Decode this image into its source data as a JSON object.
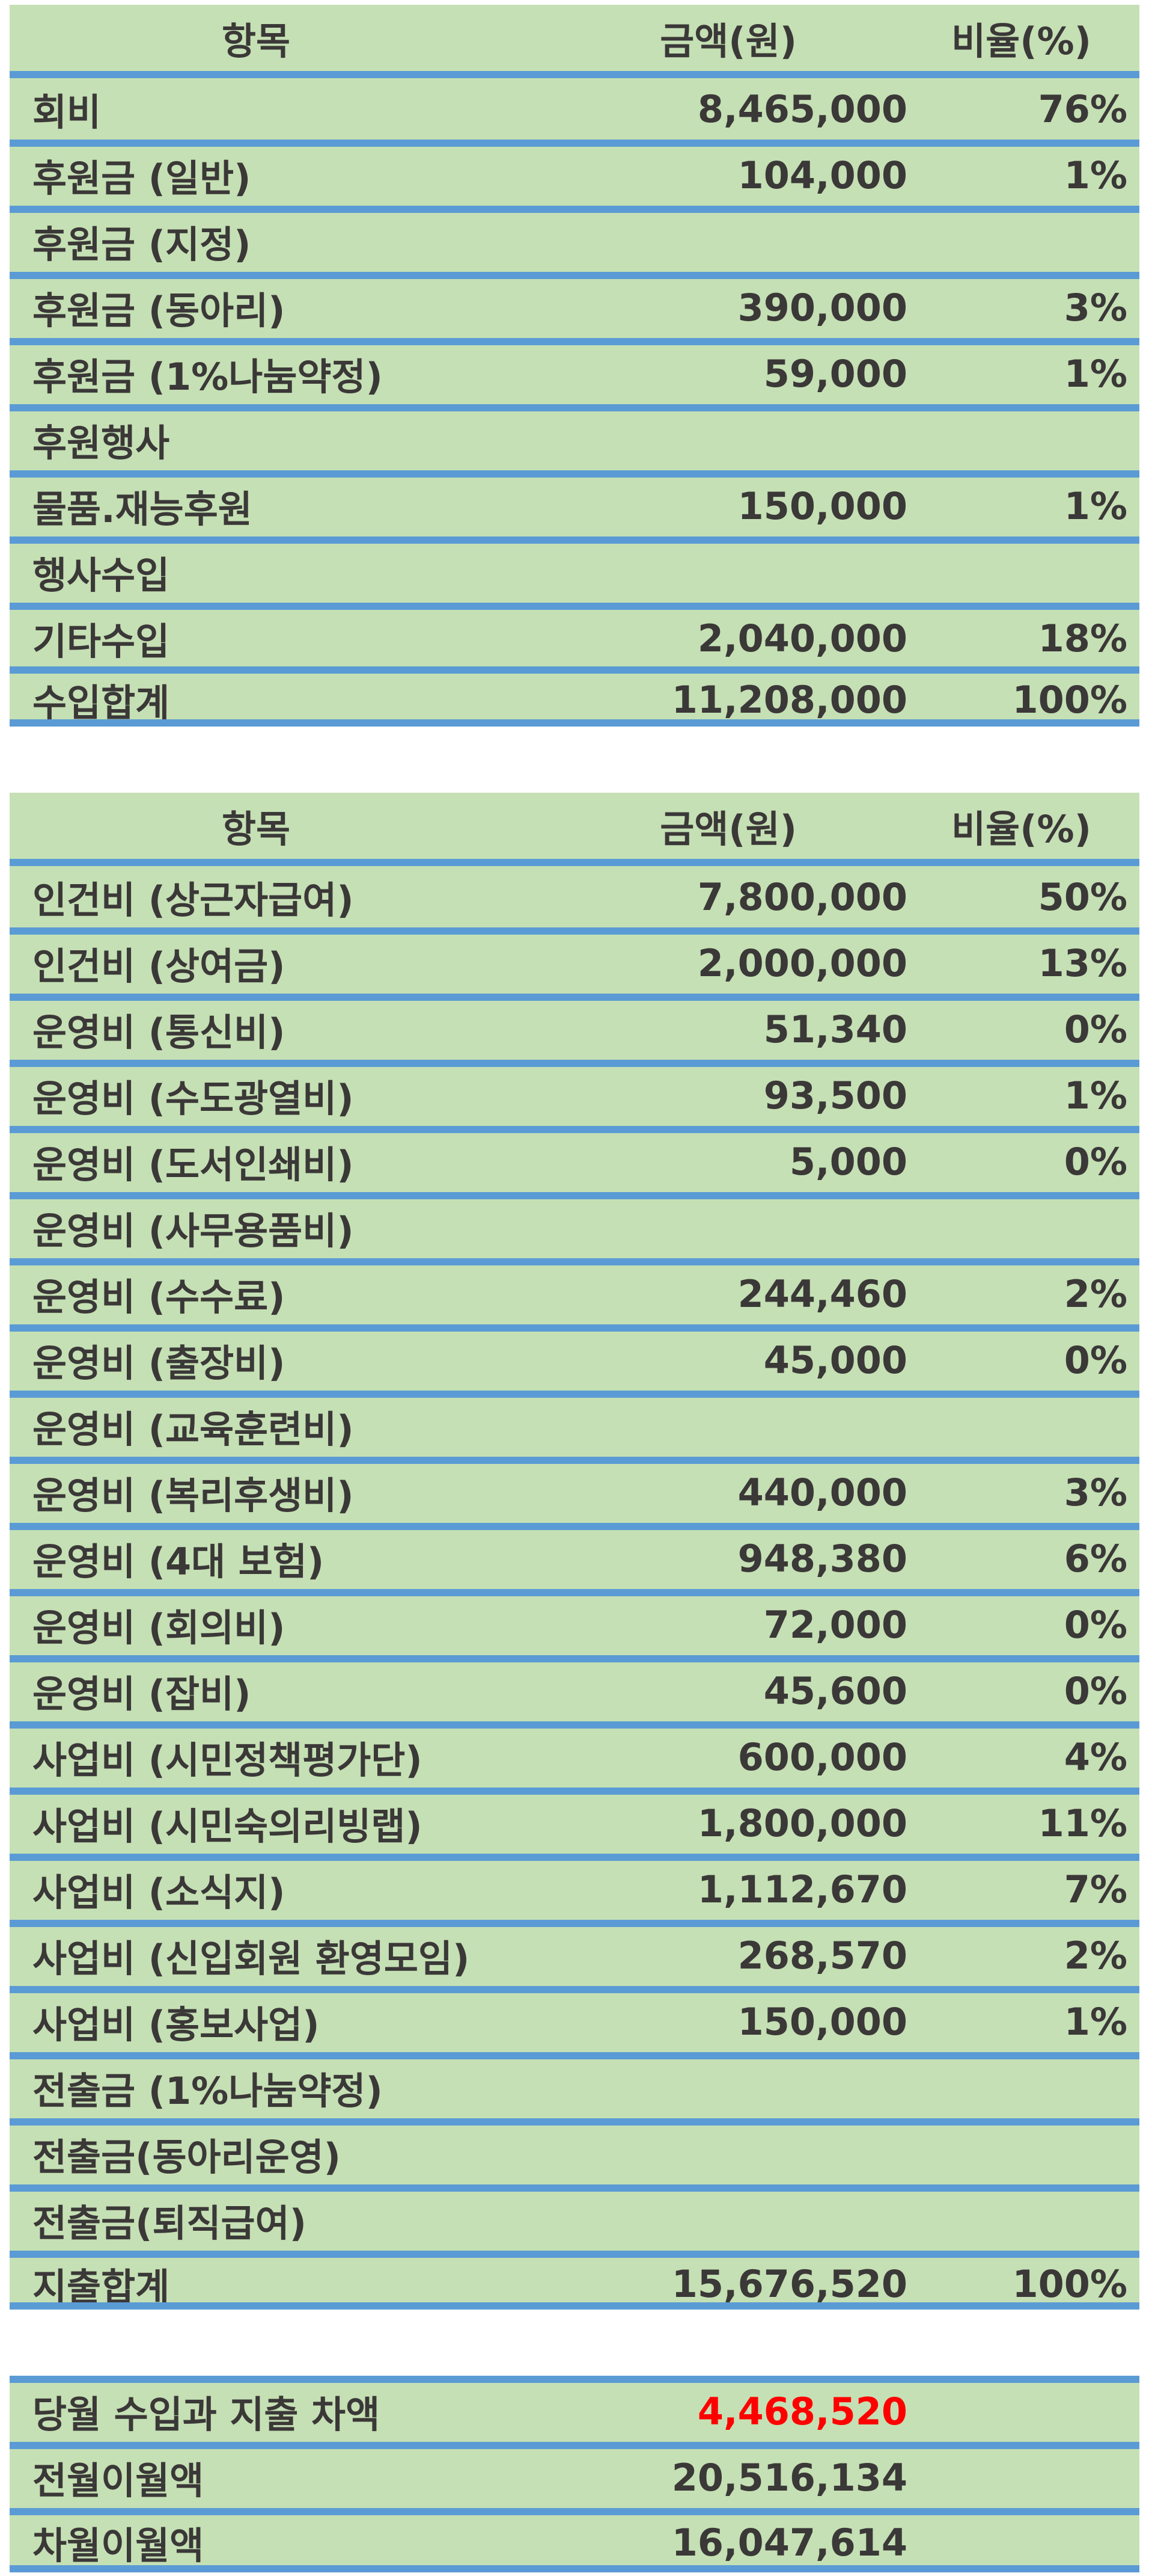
{
  "income": {
    "header": {
      "item": "항목",
      "amount": "금액(원)",
      "ratio": "비율(%)"
    },
    "rows": [
      {
        "item": "회비",
        "amount": "8,465,000",
        "ratio": "76%"
      },
      {
        "item": "후원금 (일반)",
        "amount": "104,000",
        "ratio": "1%"
      },
      {
        "item": "후원금 (지정)",
        "amount": "",
        "ratio": ""
      },
      {
        "item": "후원금 (동아리)",
        "amount": "390,000",
        "ratio": "3%"
      },
      {
        "item": "후원금 (1%나눔약정)",
        "amount": "59,000",
        "ratio": "1%"
      },
      {
        "item": "후원행사",
        "amount": "",
        "ratio": ""
      },
      {
        "item": "물품.재능후원",
        "amount": "150,000",
        "ratio": "1%"
      },
      {
        "item": "행사수입",
        "amount": "",
        "ratio": ""
      },
      {
        "item": "기타수입",
        "amount": "2,040,000",
        "ratio": "18%"
      },
      {
        "item": "수입합계",
        "amount": "11,208,000",
        "ratio": "100%"
      }
    ]
  },
  "expense": {
    "header": {
      "item": "항목",
      "amount": "금액(원)",
      "ratio": "비율(%)"
    },
    "rows": [
      {
        "item": "인건비 (상근자급여)",
        "amount": "7,800,000",
        "ratio": "50%"
      },
      {
        "item": "인건비 (상여금)",
        "amount": "2,000,000",
        "ratio": "13%"
      },
      {
        "item": "운영비 (통신비)",
        "amount": "51,340",
        "ratio": "0%"
      },
      {
        "item": "운영비 (수도광열비)",
        "amount": "93,500",
        "ratio": "1%"
      },
      {
        "item": "운영비 (도서인쇄비)",
        "amount": "5,000",
        "ratio": "0%"
      },
      {
        "item": "운영비 (사무용품비)",
        "amount": "",
        "ratio": ""
      },
      {
        "item": "운영비 (수수료)",
        "amount": "244,460",
        "ratio": "2%"
      },
      {
        "item": "운영비 (출장비)",
        "amount": "45,000",
        "ratio": "0%"
      },
      {
        "item": "운영비 (교육훈련비)",
        "amount": "",
        "ratio": ""
      },
      {
        "item": "운영비 (복리후생비)",
        "amount": "440,000",
        "ratio": "3%"
      },
      {
        "item": "운영비 (4대 보험)",
        "amount": "948,380",
        "ratio": "6%"
      },
      {
        "item": "운영비 (회의비)",
        "amount": "72,000",
        "ratio": "0%"
      },
      {
        "item": "운영비 (잡비)",
        "amount": "45,600",
        "ratio": "0%"
      },
      {
        "item": "사업비 (시민정책평가단)",
        "amount": "600,000",
        "ratio": "4%"
      },
      {
        "item": "사업비 (시민숙의리빙랩)",
        "amount": "1,800,000",
        "ratio": "11%"
      },
      {
        "item": "사업비 (소식지)",
        "amount": "1,112,670",
        "ratio": "7%"
      },
      {
        "item": "사업비 (신입회원 환영모임)",
        "amount": "268,570",
        "ratio": "2%"
      },
      {
        "item": "사업비 (홍보사업)",
        "amount": "150,000",
        "ratio": "1%"
      },
      {
        "item": "전출금 (1%나눔약정)",
        "amount": "",
        "ratio": ""
      },
      {
        "item": "전출금(동아리운영)",
        "amount": "",
        "ratio": ""
      },
      {
        "item": "전출금(퇴직급여)",
        "amount": "",
        "ratio": ""
      },
      {
        "item": "지출합계",
        "amount": "15,676,520",
        "ratio": "100%"
      }
    ]
  },
  "summary": {
    "rows": [
      {
        "item": "당월 수입과 지출 차액",
        "amount": "4,468,520"
      },
      {
        "item": "전월이월액",
        "amount": "20,516,134"
      },
      {
        "item": "차월이월액",
        "amount": "16,047,614"
      }
    ],
    "highlight_color": "#ff0000"
  },
  "colors": {
    "panel_bg": "#c5e0b4",
    "separator": "#5b9bd5",
    "text": "#3b3838"
  }
}
